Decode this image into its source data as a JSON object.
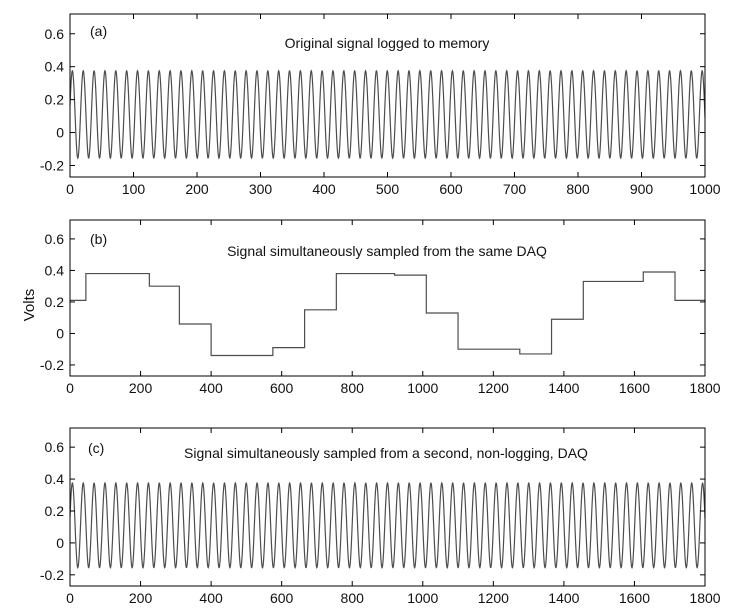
{
  "figure": {
    "ylabel": "Volts"
  },
  "chart_data": [
    {
      "type": "line",
      "tag": "(a)",
      "title": "Original signal logged to memory",
      "xlabel": "",
      "ylabel": "Volts",
      "xlim": [
        0,
        1000
      ],
      "ylim": [
        -0.27,
        0.72
      ],
      "xticks": [
        0,
        100,
        200,
        300,
        400,
        500,
        600,
        700,
        800,
        900,
        1000
      ],
      "yticks": [
        -0.2,
        0,
        0.2,
        0.4,
        0.6
      ],
      "ytick_labels": [
        "-0.2",
        "0",
        "0.2",
        "0.4",
        "0.6"
      ],
      "series": [
        {
          "kind": "sine",
          "offset": 0.11,
          "amplitude": 0.265,
          "period": 17.1,
          "phase": 0.2,
          "color": "#4d4d4d"
        }
      ],
      "grid": false
    },
    {
      "type": "line",
      "tag": "(b)",
      "title": "Signal simultaneously sampled from the same DAQ",
      "xlabel": "",
      "ylabel": "Volts",
      "xlim": [
        0,
        1800
      ],
      "ylim": [
        -0.27,
        0.72
      ],
      "xticks": [
        0,
        200,
        400,
        600,
        800,
        1000,
        1200,
        1400,
        1600,
        1800
      ],
      "yticks": [
        -0.2,
        0,
        0.2,
        0.4,
        0.6
      ],
      "ytick_labels": [
        "-0.2",
        "0",
        "0.2",
        "0.4",
        "0.6"
      ],
      "series": [
        {
          "kind": "step",
          "x": [
            0,
            45,
            225,
            310,
            400,
            575,
            665,
            755,
            920,
            1010,
            1100,
            1275,
            1365,
            1455,
            1625,
            1715,
            1800
          ],
          "y": [
            0.21,
            0.38,
            0.3,
            0.06,
            -0.14,
            -0.09,
            0.15,
            0.38,
            0.37,
            0.13,
            -0.1,
            -0.13,
            0.09,
            0.33,
            0.39,
            0.21,
            0.2
          ],
          "color": "#4d4d4d"
        }
      ],
      "grid": false
    },
    {
      "type": "line",
      "tag": "(c)",
      "title": "Signal simultaneously sampled from a second, non-logging, DAQ",
      "xlabel": "",
      "ylabel": "Volts",
      "xlim": [
        0,
        1800
      ],
      "ylim": [
        -0.27,
        0.72
      ],
      "xticks": [
        0,
        200,
        400,
        600,
        800,
        1000,
        1200,
        1400,
        1600,
        1800
      ],
      "yticks": [
        -0.2,
        0,
        0.2,
        0.4,
        0.6
      ],
      "ytick_labels": [
        "-0.2",
        "0",
        "0.2",
        "0.4",
        "0.6"
      ],
      "series": [
        {
          "kind": "sine",
          "offset": 0.11,
          "amplitude": 0.265,
          "period": 30.8,
          "phase": 0.2,
          "color": "#4d4d4d"
        }
      ],
      "grid": false
    }
  ]
}
